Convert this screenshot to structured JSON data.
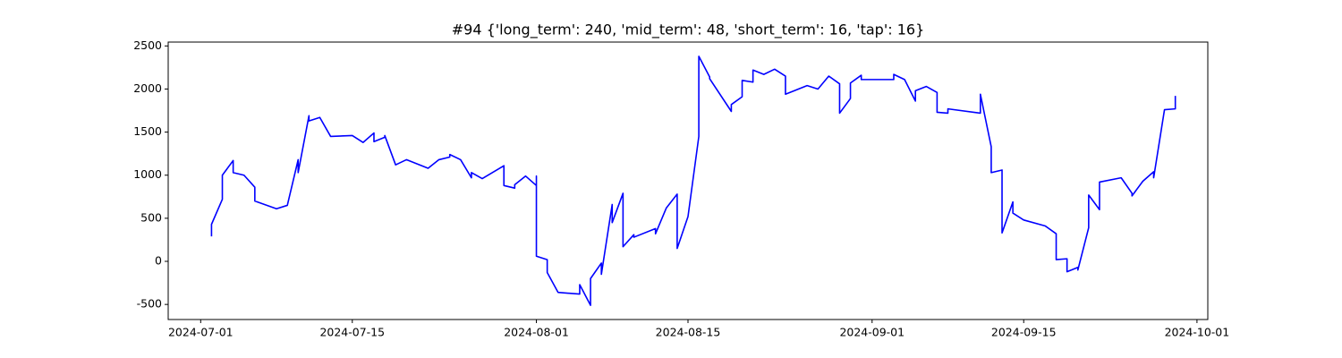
{
  "chart_data": {
    "type": "line",
    "title": "#94 {'long_term': 240, 'mid_term': 48, 'short_term': 16, 'tap': 16}",
    "color": "#0000ff",
    "x": [
      "2024-07-02",
      "2024-07-02",
      "2024-07-03",
      "2024-07-03",
      "2024-07-04",
      "2024-07-04",
      "2024-07-05",
      "2024-07-06",
      "2024-07-06",
      "2024-07-08",
      "2024-07-09",
      "2024-07-10",
      "2024-07-10",
      "2024-07-10",
      "2024-07-11",
      "2024-07-11",
      "2024-07-12",
      "2024-07-13",
      "2024-07-15",
      "2024-07-16",
      "2024-07-17",
      "2024-07-17",
      "2024-07-18",
      "2024-07-18",
      "2024-07-19",
      "2024-07-20",
      "2024-07-22",
      "2024-07-23",
      "2024-07-24",
      "2024-07-24",
      "2024-07-25",
      "2024-07-26",
      "2024-07-26",
      "2024-07-27",
      "2024-07-29",
      "2024-07-29",
      "2024-07-30",
      "2024-07-30",
      "2024-07-31",
      "2024-08-01",
      "2024-08-01",
      "2024-08-01",
      "2024-08-02",
      "2024-08-02",
      "2024-08-03",
      "2024-08-05",
      "2024-08-05",
      "2024-08-06",
      "2024-08-06",
      "2024-08-07",
      "2024-08-07",
      "2024-08-08",
      "2024-08-08",
      "2024-08-09",
      "2024-08-09",
      "2024-08-10",
      "2024-08-10",
      "2024-08-12",
      "2024-08-12",
      "2024-08-13",
      "2024-08-14",
      "2024-08-14",
      "2024-08-14",
      "2024-08-15",
      "2024-08-16",
      "2024-08-16",
      "2024-08-17",
      "2024-08-17",
      "2024-08-19",
      "2024-08-19",
      "2024-08-20",
      "2024-08-20",
      "2024-08-21",
      "2024-08-21",
      "2024-08-22",
      "2024-08-23",
      "2024-08-24",
      "2024-08-24",
      "2024-08-26",
      "2024-08-27",
      "2024-08-28",
      "2024-08-29",
      "2024-08-29",
      "2024-08-30",
      "2024-08-30",
      "2024-08-31",
      "2024-08-31",
      "2024-09-03",
      "2024-09-03",
      "2024-09-04",
      "2024-09-05",
      "2024-09-05",
      "2024-09-06",
      "2024-09-07",
      "2024-09-07",
      "2024-09-08",
      "2024-09-08",
      "2024-09-11",
      "2024-09-11",
      "2024-09-12",
      "2024-09-12",
      "2024-09-13",
      "2024-09-13",
      "2024-09-14",
      "2024-09-14",
      "2024-09-15",
      "2024-09-17",
      "2024-09-18",
      "2024-09-18",
      "2024-09-19",
      "2024-09-19",
      "2024-09-20",
      "2024-09-20",
      "2024-09-21",
      "2024-09-21",
      "2024-09-22",
      "2024-09-22",
      "2024-09-24",
      "2024-09-25",
      "2024-09-25",
      "2024-09-26",
      "2024-09-27",
      "2024-09-27",
      "2024-09-28",
      "2024-09-29",
      "2024-09-29"
    ],
    "values": [
      290,
      430,
      720,
      1000,
      1170,
      1030,
      1000,
      860,
      700,
      610,
      650,
      1180,
      1160,
      1030,
      1690,
      1630,
      1670,
      1450,
      1460,
      1380,
      1490,
      1390,
      1440,
      1460,
      1120,
      1180,
      1080,
      1180,
      1210,
      1240,
      1180,
      970,
      1030,
      960,
      1110,
      880,
      850,
      890,
      990,
      880,
      990,
      60,
      20,
      -130,
      -360,
      -380,
      -270,
      -510,
      -200,
      -20,
      -150,
      660,
      450,
      790,
      170,
      310,
      280,
      380,
      320,
      620,
      780,
      220,
      150,
      520,
      1450,
      2380,
      2140,
      2120,
      1740,
      1820,
      1910,
      2100,
      2080,
      2220,
      2170,
      2230,
      2150,
      1940,
      2040,
      2000,
      2150,
      2060,
      1720,
      1890,
      2070,
      2160,
      2110,
      2110,
      2170,
      2110,
      1860,
      1980,
      2030,
      1960,
      1730,
      1720,
      1770,
      1720,
      1940,
      1330,
      1030,
      1060,
      330,
      690,
      560,
      480,
      410,
      320,
      20,
      30,
      -120,
      -70,
      -100,
      390,
      770,
      600,
      920,
      970,
      790,
      760,
      930,
      1040,
      970,
      1760,
      1770,
      1920
    ],
    "xlim": [
      "2024-06-28",
      "2024-10-02"
    ],
    "xticks": [
      "2024-07-01",
      "2024-07-15",
      "2024-08-01",
      "2024-08-15",
      "2024-09-01",
      "2024-09-15",
      "2024-10-01"
    ],
    "ylim": [
      -675,
      2545
    ],
    "yticks": [
      -500,
      0,
      500,
      1000,
      1500,
      2000,
      2500
    ]
  }
}
